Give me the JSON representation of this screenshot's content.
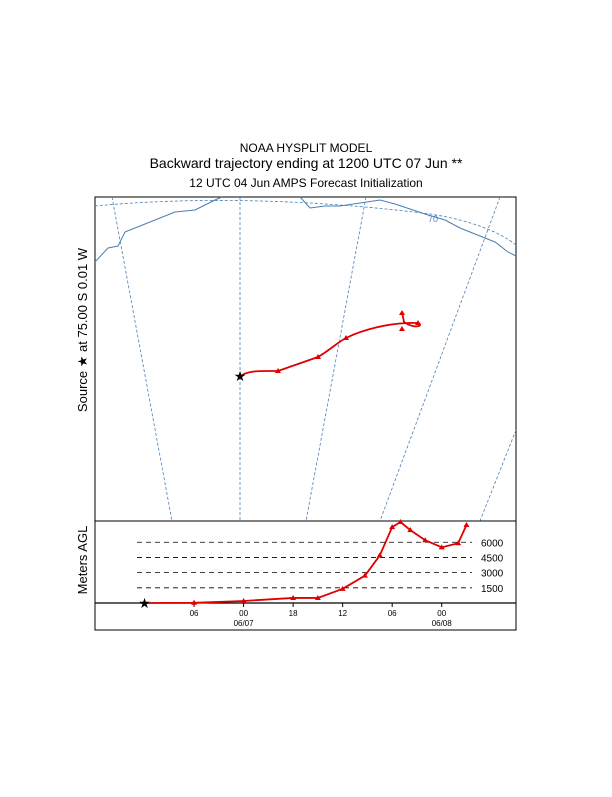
{
  "chart_data": {
    "type": "line",
    "title": "NOAA HYSPLIT MODEL",
    "subtitle": "Backward trajectory ending at 1200 UTC 07 Jun **",
    "subtitle2": "12 UTC 04 Jun    AMPS  Forecast Initialization",
    "map_label": "Source ★ at   75.00 S    0.01 W",
    "map_grid_label": "70",
    "ylabel": "Meters AGL",
    "x": [
      0,
      6,
      12,
      18,
      21,
      24,
      26.7,
      28.5,
      30,
      31,
      32.2,
      34,
      36,
      38,
      39
    ],
    "series": [
      {
        "color": "#e00000",
        "values": [
          0,
          20,
          200,
          500,
          500,
          1400,
          2700,
          4700,
          7500,
          8000,
          7200,
          6200,
          5500,
          5900,
          7700
        ]
      }
    ],
    "xlim": [
      -6,
      45
    ],
    "xticks": [
      {
        "value": 6,
        "label": "06"
      },
      {
        "value": 12,
        "label": "00"
      },
      {
        "value": 18,
        "label": "18"
      },
      {
        "value": 24,
        "label": "12"
      },
      {
        "value": 30,
        "label": "06"
      },
      {
        "value": 36,
        "label": "00"
      }
    ],
    "date_ticks": [
      {
        "value": 12,
        "label": "06/07"
      },
      {
        "value": 36,
        "label": "06/08"
      }
    ],
    "ylim": [
      0,
      8100
    ],
    "yticks": [
      1500,
      3000,
      4500,
      6000
    ]
  }
}
